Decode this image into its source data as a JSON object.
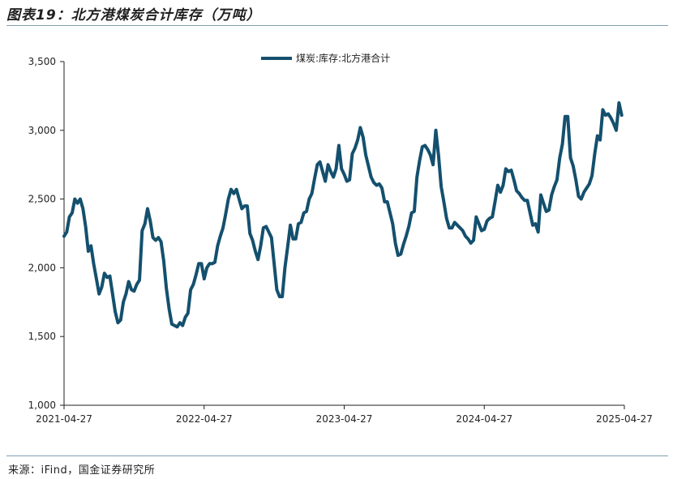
{
  "figure": {
    "title": "图表19：北方港煤炭合计库存（万吨）",
    "source": "来源：iFind，国金证券研究所"
  },
  "chart_data": {
    "type": "line",
    "title": "北方港煤炭合计库存（万吨）",
    "xlabel": "",
    "ylabel": "",
    "ylim": [
      1000,
      3500
    ],
    "yticks": [
      1000,
      1500,
      2000,
      2500,
      3000,
      3500
    ],
    "ytick_labels": [
      "1,000",
      "1,500",
      "2,000",
      "2,500",
      "3,000",
      "3,500"
    ],
    "xlim": [
      0,
      208
    ],
    "xticks": [
      0,
      52,
      104,
      156,
      208
    ],
    "xtick_labels": [
      "2021-04-27",
      "2022-04-27",
      "2023-04-27",
      "2024-04-27",
      "2025-04-27"
    ],
    "grid": false,
    "legend_position": "top-center",
    "color": "#14506e",
    "series": [
      {
        "name": "煤炭:库存:北方港合计",
        "points": [
          [
            0,
            2230
          ],
          [
            1,
            2260
          ],
          [
            2,
            2370
          ],
          [
            3,
            2400
          ],
          [
            4,
            2500
          ],
          [
            5,
            2470
          ],
          [
            6,
            2500
          ],
          [
            7,
            2430
          ],
          [
            8,
            2300
          ],
          [
            9,
            2120
          ],
          [
            10,
            2160
          ],
          [
            11,
            2030
          ],
          [
            12,
            1920
          ],
          [
            13,
            1810
          ],
          [
            14,
            1860
          ],
          [
            15,
            1960
          ],
          [
            16,
            1930
          ],
          [
            17,
            1940
          ],
          [
            18,
            1810
          ],
          [
            19,
            1680
          ],
          [
            20,
            1600
          ],
          [
            21,
            1620
          ],
          [
            22,
            1750
          ],
          [
            23,
            1810
          ],
          [
            24,
            1900
          ],
          [
            25,
            1840
          ],
          [
            26,
            1830
          ],
          [
            27,
            1880
          ],
          [
            28,
            1910
          ],
          [
            29,
            2270
          ],
          [
            30,
            2320
          ],
          [
            31,
            2430
          ],
          [
            32,
            2340
          ],
          [
            33,
            2220
          ],
          [
            34,
            2200
          ],
          [
            35,
            2220
          ],
          [
            36,
            2190
          ],
          [
            37,
            2050
          ],
          [
            38,
            1850
          ],
          [
            39,
            1700
          ],
          [
            40,
            1590
          ],
          [
            41,
            1580
          ],
          [
            42,
            1570
          ],
          [
            43,
            1600
          ],
          [
            44,
            1580
          ],
          [
            45,
            1640
          ],
          [
            46,
            1670
          ],
          [
            47,
            1840
          ],
          [
            48,
            1880
          ],
          [
            49,
            1950
          ],
          [
            50,
            2030
          ],
          [
            51,
            2030
          ],
          [
            52,
            1920
          ],
          [
            53,
            2000
          ],
          [
            54,
            2030
          ],
          [
            55,
            2030
          ],
          [
            56,
            2040
          ],
          [
            57,
            2160
          ],
          [
            58,
            2230
          ],
          [
            59,
            2290
          ],
          [
            60,
            2390
          ],
          [
            61,
            2500
          ],
          [
            62,
            2570
          ],
          [
            63,
            2540
          ],
          [
            64,
            2570
          ],
          [
            65,
            2500
          ],
          [
            66,
            2430
          ],
          [
            67,
            2450
          ],
          [
            68,
            2450
          ],
          [
            69,
            2250
          ],
          [
            70,
            2200
          ],
          [
            71,
            2120
          ],
          [
            72,
            2060
          ],
          [
            73,
            2160
          ],
          [
            74,
            2290
          ],
          [
            75,
            2300
          ],
          [
            76,
            2260
          ],
          [
            77,
            2220
          ],
          [
            78,
            2030
          ],
          [
            79,
            1840
          ],
          [
            80,
            1790
          ],
          [
            81,
            1790
          ],
          [
            82,
            2000
          ],
          [
            83,
            2150
          ],
          [
            84,
            2310
          ],
          [
            85,
            2210
          ],
          [
            86,
            2210
          ],
          [
            87,
            2320
          ],
          [
            88,
            2330
          ],
          [
            89,
            2400
          ],
          [
            90,
            2410
          ],
          [
            91,
            2500
          ],
          [
            92,
            2540
          ],
          [
            93,
            2650
          ],
          [
            94,
            2750
          ],
          [
            95,
            2770
          ],
          [
            96,
            2700
          ],
          [
            97,
            2630
          ],
          [
            98,
            2750
          ],
          [
            99,
            2700
          ],
          [
            100,
            2660
          ],
          [
            101,
            2720
          ],
          [
            102,
            2890
          ],
          [
            103,
            2720
          ],
          [
            104,
            2680
          ],
          [
            105,
            2630
          ],
          [
            106,
            2640
          ],
          [
            107,
            2830
          ],
          [
            108,
            2870
          ],
          [
            109,
            2930
          ],
          [
            110,
            3020
          ],
          [
            111,
            2950
          ],
          [
            112,
            2820
          ],
          [
            113,
            2740
          ],
          [
            114,
            2660
          ],
          [
            115,
            2620
          ],
          [
            116,
            2600
          ],
          [
            117,
            2610
          ],
          [
            118,
            2580
          ],
          [
            119,
            2480
          ],
          [
            120,
            2480
          ],
          [
            121,
            2400
          ],
          [
            122,
            2320
          ],
          [
            123,
            2180
          ],
          [
            124,
            2090
          ],
          [
            125,
            2100
          ],
          [
            126,
            2170
          ],
          [
            127,
            2230
          ],
          [
            128,
            2300
          ],
          [
            129,
            2400
          ],
          [
            130,
            2410
          ],
          [
            131,
            2660
          ],
          [
            132,
            2780
          ],
          [
            133,
            2880
          ],
          [
            134,
            2890
          ],
          [
            135,
            2860
          ],
          [
            136,
            2820
          ],
          [
            137,
            2750
          ],
          [
            138,
            3000
          ],
          [
            139,
            2820
          ],
          [
            140,
            2590
          ],
          [
            141,
            2480
          ],
          [
            142,
            2360
          ],
          [
            143,
            2290
          ],
          [
            144,
            2290
          ],
          [
            145,
            2330
          ],
          [
            146,
            2310
          ],
          [
            147,
            2290
          ],
          [
            148,
            2270
          ],
          [
            149,
            2230
          ],
          [
            150,
            2210
          ],
          [
            151,
            2180
          ],
          [
            152,
            2200
          ],
          [
            153,
            2370
          ],
          [
            154,
            2320
          ],
          [
            155,
            2270
          ],
          [
            156,
            2280
          ],
          [
            157,
            2340
          ],
          [
            158,
            2360
          ],
          [
            159,
            2370
          ],
          [
            160,
            2480
          ],
          [
            161,
            2600
          ],
          [
            162,
            2550
          ],
          [
            163,
            2600
          ],
          [
            164,
            2720
          ],
          [
            165,
            2700
          ],
          [
            166,
            2710
          ],
          [
            167,
            2640
          ],
          [
            168,
            2560
          ],
          [
            169,
            2540
          ],
          [
            170,
            2510
          ],
          [
            171,
            2490
          ],
          [
            172,
            2490
          ],
          [
            173,
            2400
          ],
          [
            174,
            2310
          ],
          [
            175,
            2320
          ],
          [
            176,
            2260
          ],
          [
            177,
            2530
          ],
          [
            178,
            2470
          ],
          [
            179,
            2410
          ],
          [
            180,
            2420
          ],
          [
            181,
            2530
          ],
          [
            182,
            2590
          ],
          [
            183,
            2640
          ],
          [
            184,
            2800
          ],
          [
            185,
            2900
          ],
          [
            186,
            3100
          ],
          [
            187,
            3100
          ],
          [
            188,
            2800
          ],
          [
            189,
            2740
          ],
          [
            190,
            2640
          ],
          [
            191,
            2520
          ],
          [
            192,
            2500
          ],
          [
            193,
            2550
          ],
          [
            194,
            2580
          ],
          [
            195,
            2610
          ],
          [
            196,
            2670
          ],
          [
            197,
            2830
          ],
          [
            198,
            2960
          ],
          [
            199,
            2930
          ],
          [
            200,
            3150
          ],
          [
            201,
            3110
          ],
          [
            202,
            3120
          ],
          [
            203,
            3090
          ],
          [
            204,
            3050
          ],
          [
            205,
            3000
          ],
          [
            206,
            3200
          ],
          [
            207,
            3110
          ]
        ]
      }
    ]
  }
}
